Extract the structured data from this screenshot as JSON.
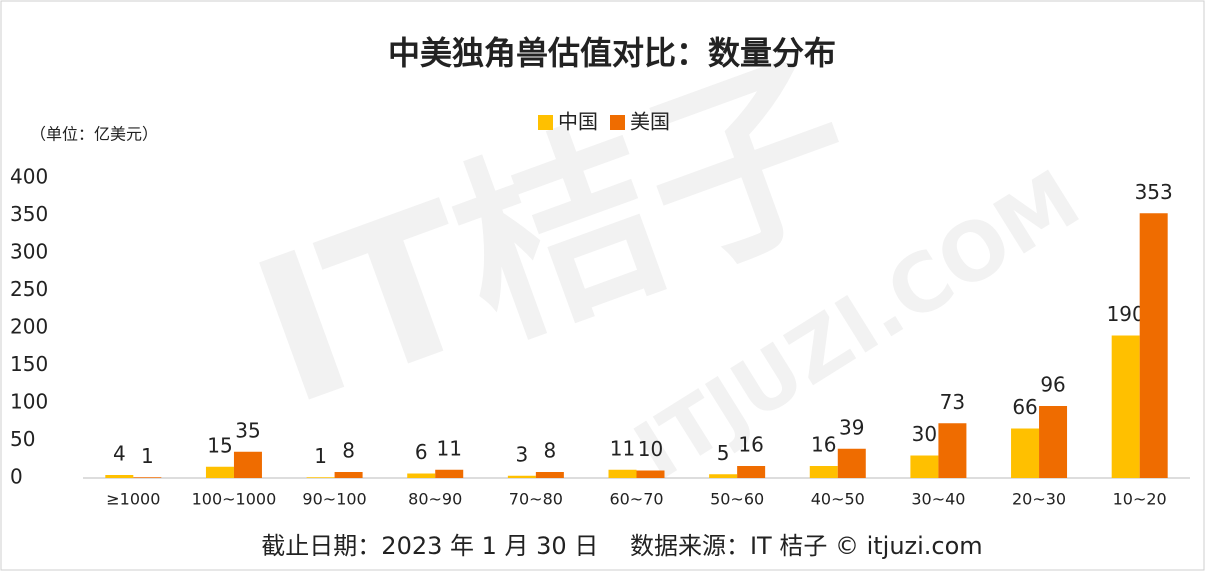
{
  "chart_data": {
    "type": "bar",
    "title": "中美独角兽估值对比：数量分布",
    "unit_label": "（单位：亿美元）",
    "footer": "截止日期：2023 年 1 月 30 日　 数据来源：IT 桔子 © itjuzi.com",
    "watermark": [
      "IT桔子",
      "ITJUZI.COM"
    ],
    "categories": [
      "≥1000",
      "100~1000",
      "90~100",
      "80~90",
      "70~80",
      "60~70",
      "50~60",
      "40~50",
      "30~40",
      "20~30",
      "10~20"
    ],
    "series": [
      {
        "name": "中国",
        "color": "#FFC000",
        "values": [
          4,
          15,
          1,
          6,
          3,
          11,
          5,
          16,
          30,
          66,
          190
        ]
      },
      {
        "name": "美国",
        "color": "#EF6C00",
        "values": [
          1,
          35,
          8,
          11,
          8,
          10,
          16,
          39,
          73,
          96,
          353
        ]
      }
    ],
    "ylim": [
      0,
      400
    ],
    "yticks": [
      0,
      50,
      100,
      150,
      200,
      250,
      300,
      350,
      400
    ],
    "grid": false,
    "legend": "top"
  }
}
